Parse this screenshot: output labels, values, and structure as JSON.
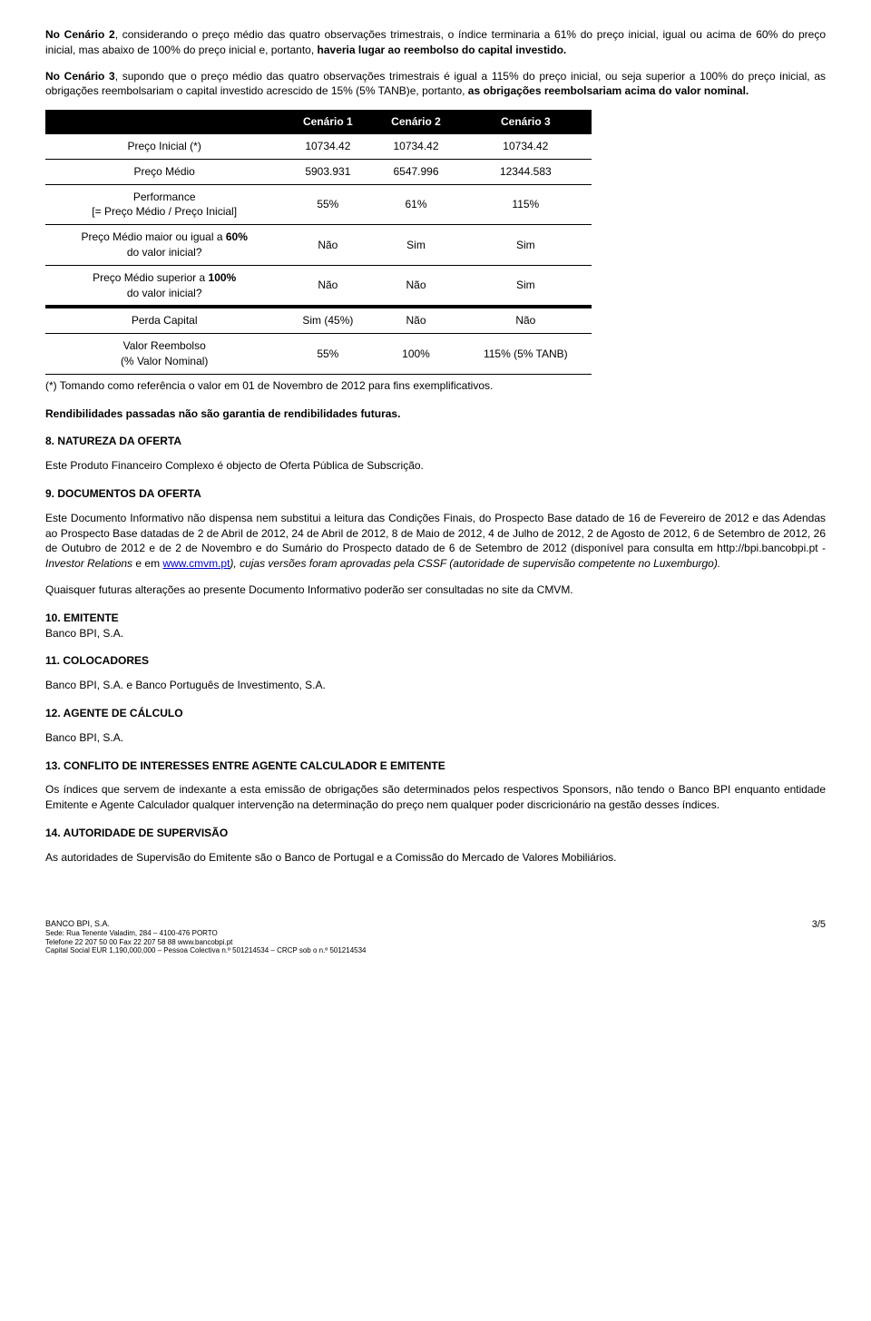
{
  "intro": {
    "p1_a": "No Cenário 2",
    "p1_b": ", considerando o preço médio das quatro observações trimestrais, o índice terminaria a 61% do preço inicial, igual ou acima de 60% do preço inicial, mas abaixo de 100% do preço inicial e, portanto, ",
    "p1_c": "haveria lugar ao reembolso do capital investido.",
    "p2_a": "No Cenário 3",
    "p2_b": ", supondo que o preço médio das quatro observações trimestrais é igual a 115% do preço inicial, ou seja superior a 100% do preço inicial, as obrigações reembolsariam o capital investido acrescido de 15% (5% TANB)e, portanto, ",
    "p2_c": "as obrigações reembolsariam acima do valor nominal."
  },
  "table": {
    "headers": {
      "c1": "Cenário 1",
      "c2": "Cenário 2",
      "c3": "Cenário 3"
    },
    "rows": {
      "r1": {
        "label": "Preço Inicial (*)",
        "c1": "10734.42",
        "c2": "10734.42",
        "c3": "10734.42"
      },
      "r2": {
        "label": "Preço Médio",
        "c1": "5903.931",
        "c2": "6547.996",
        "c3": "12344.583"
      },
      "r3": {
        "label_a": "Performance",
        "label_b": "[= Preço Médio / Preço Inicial]",
        "c1": "55%",
        "c2": "61%",
        "c3": "115%"
      },
      "r4": {
        "label_a": "Preço Médio maior ou igual a ",
        "label_bold": "60%",
        "label_b": " do valor inicial?",
        "c1": "Não",
        "c2": "Sim",
        "c3": "Sim"
      },
      "r5": {
        "label_a": "Preço Médio superior a ",
        "label_bold": "100%",
        "label_b": " do valor inicial?",
        "c1": "Não",
        "c2": "Não",
        "c3": "Sim"
      },
      "r6": {
        "label": "Perda Capital",
        "c1": "Sim (45%)",
        "c2": "Não",
        "c3": "Não"
      },
      "r7": {
        "label_a": "Valor Reembolso",
        "label_b": "(% Valor Nominal)",
        "c1": "55%",
        "c2": "100%",
        "c3": "115% (5% TANB)"
      }
    },
    "footnote": "(*) Tomando como referência o valor em 01 de Novembro de 2012 para fins exemplificativos."
  },
  "rend": "Rendibilidades passadas não são garantia de rendibilidades futuras.",
  "s8": {
    "title": "8. NATUREZA DA OFERTA",
    "body": "Este Produto Financeiro Complexo é objecto de Oferta Pública de Subscrição."
  },
  "s9": {
    "title": "9. DOCUMENTOS DA OFERTA",
    "body_a": "Este Documento Informativo não dispensa nem substitui a leitura das Condições Finais, do Prospecto Base datado de 16 de Fevereiro de 2012 e das Adendas ao Prospecto Base datadas de 2 de Abril de 2012, 24 de Abril de 2012, 8 de Maio de 2012, 4 de Julho de 2012, 2 de Agosto de 2012, 6 de Setembro de 2012, 26 de Outubro de 2012 e de 2 de Novembro e do Sumário do Prospecto datado de 6 de Setembro de 2012 (disponível para consulta em http://bpi.bancobpi.pt - ",
    "body_italic": "Investor Relations",
    "body_b": " e em ",
    "link1": "www.cmvm.pt",
    "body_c": "), cujas versões foram aprovadas pela CSSF (autoridade de supervisão competente no Luxemburgo).",
    "body2": "Quaisquer futuras alterações ao presente Documento Informativo poderão ser consultadas no site da CMVM."
  },
  "s10": {
    "title": "10. EMITENTE",
    "body": "Banco BPI, S.A."
  },
  "s11": {
    "title": "11. COLOCADORES",
    "body": "Banco BPI, S.A. e Banco Português de Investimento, S.A."
  },
  "s12": {
    "title": "12. AGENTE DE CÁLCULO",
    "body": "Banco BPI, S.A."
  },
  "s13": {
    "title": "13. CONFLITO DE INTERESSES ENTRE AGENTE CALCULADOR E EMITENTE",
    "body": "Os índices que servem de indexante a esta emissão de obrigações são determinados pelos respectivos Sponsors, não tendo o Banco BPI enquanto entidade Emitente e Agente Calculador qualquer intervenção na determinação do preço nem qualquer poder discricionário na gestão desses índices."
  },
  "s14": {
    "title": "14. AUTORIDADE DE SUPERVISÃO",
    "body": "As autoridades de Supervisão do Emitente são o Banco de Portugal e a Comissão do Mercado de Valores Mobiliários."
  },
  "footer": {
    "l1": "BANCO BPI, S.A.",
    "l2": "Sede: Rua Tenente Valadim, 284 – 4100-476 PORTO",
    "l3": "Telefone 22 207 50 00  Fax 22 207 58 88  www.bancobpi.pt",
    "l4": "Capital Social EUR 1,190,000,000 – Pessoa Colectiva n.º 501214534 – CRCP sob o n.º 501214534",
    "page": "3/5"
  }
}
